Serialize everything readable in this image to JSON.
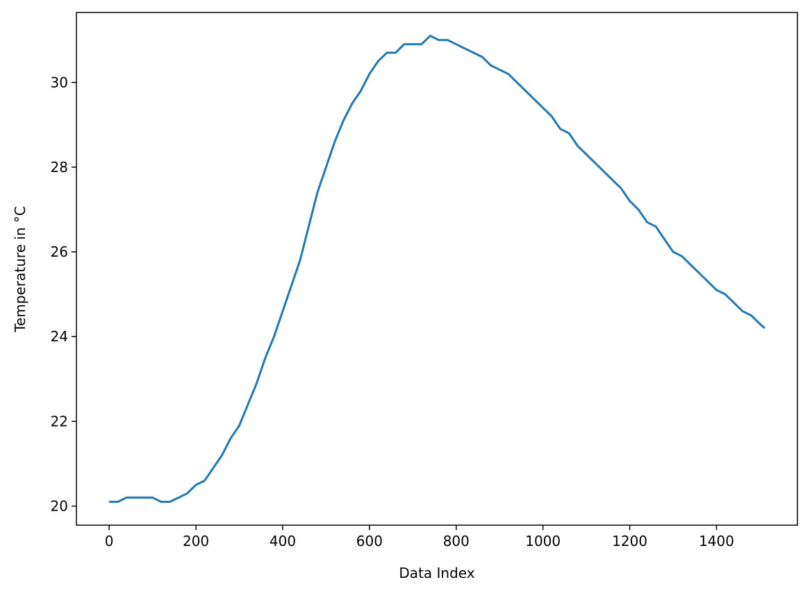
{
  "chart_data": {
    "type": "line",
    "xlabel": "Data Index",
    "ylabel": "Temperature in °C",
    "x": [
      0,
      20,
      40,
      60,
      80,
      100,
      120,
      140,
      160,
      180,
      200,
      220,
      240,
      260,
      280,
      300,
      320,
      340,
      360,
      380,
      400,
      420,
      440,
      460,
      480,
      500,
      520,
      540,
      560,
      580,
      600,
      620,
      640,
      660,
      680,
      700,
      720,
      740,
      760,
      780,
      800,
      820,
      840,
      860,
      880,
      900,
      920,
      940,
      960,
      980,
      1000,
      1020,
      1040,
      1060,
      1080,
      1100,
      1120,
      1140,
      1160,
      1180,
      1200,
      1220,
      1240,
      1260,
      1280,
      1300,
      1320,
      1340,
      1360,
      1380,
      1400,
      1420,
      1440,
      1460,
      1480,
      1500,
      1511
    ],
    "series": [
      {
        "color": "#1f77b4",
        "values": [
          20.1,
          20.1,
          20.2,
          20.2,
          20.2,
          20.2,
          20.1,
          20.1,
          20.2,
          20.3,
          20.5,
          20.6,
          20.9,
          21.2,
          21.6,
          21.9,
          22.4,
          22.9,
          23.5,
          24.0,
          24.6,
          25.2,
          25.8,
          26.6,
          27.4,
          28.0,
          28.6,
          29.1,
          29.5,
          29.8,
          30.2,
          30.5,
          30.7,
          30.7,
          30.9,
          30.9,
          30.9,
          31.1,
          31.0,
          31.0,
          30.9,
          30.8,
          30.7,
          30.6,
          30.4,
          30.3,
          30.2,
          30.0,
          29.8,
          29.6,
          29.4,
          29.2,
          28.9,
          28.8,
          28.5,
          28.3,
          28.1,
          27.9,
          27.7,
          27.5,
          27.2,
          27.0,
          26.7,
          26.6,
          26.3,
          26.0,
          25.9,
          25.7,
          25.5,
          25.3,
          25.1,
          25.0,
          24.8,
          24.6,
          24.5,
          24.3,
          24.2
        ]
      }
    ],
    "xlim": [
      -75.5,
      1586.5
    ],
    "ylim": [
      19.55,
      31.65
    ],
    "xticks": [
      0,
      200,
      400,
      600,
      800,
      1000,
      1200,
      1400
    ],
    "yticks": [
      20,
      22,
      24,
      26,
      28,
      30
    ]
  }
}
